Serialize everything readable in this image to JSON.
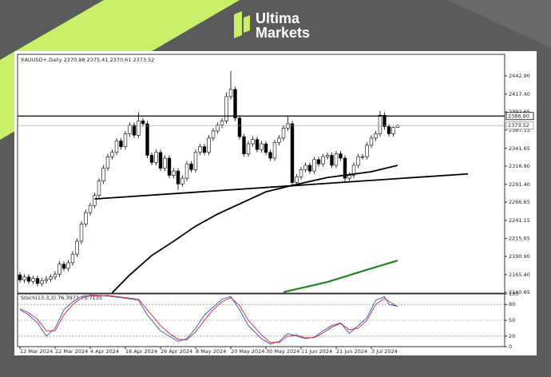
{
  "brand": {
    "line1": "Ultima",
    "line2": "Markets"
  },
  "chart_data": {
    "type": "candlestick",
    "symbol": "XAUUSD+,Daily",
    "categories": [
      "12 Mar 2024",
      null,
      null,
      null,
      null,
      null,
      null,
      null,
      "22 Mar 2024",
      null,
      null,
      null,
      null,
      null,
      null,
      null,
      "4 Apr 2024",
      null,
      null,
      null,
      null,
      null,
      null,
      null,
      "16 Apr 2024",
      null,
      null,
      null,
      null,
      null,
      null,
      null,
      "26 Apr 2024",
      null,
      null,
      null,
      null,
      null,
      null,
      null,
      "8 May 2024",
      null,
      null,
      null,
      null,
      null,
      null,
      null,
      "20 May 2024",
      null,
      null,
      null,
      null,
      null,
      null,
      null,
      "30 May 2024",
      null,
      null,
      null,
      null,
      null,
      null,
      null,
      "11 Jun 2024",
      null,
      null,
      null,
      null,
      null,
      null,
      null,
      "21 Jun 2024",
      null,
      null,
      null,
      null,
      null,
      null,
      null,
      "3 Jul 2024",
      null,
      null,
      null,
      null,
      null,
      null
    ],
    "open": [
      2165,
      2158,
      2162,
      2156,
      2160,
      2153,
      2157,
      2159,
      2162,
      2166,
      2180,
      2174,
      2182,
      2194,
      2212,
      2236,
      2252,
      2262,
      2276,
      2296,
      2314,
      2330,
      2336,
      2352,
      2344,
      2362,
      2374,
      2360,
      2380,
      2376,
      2332,
      2322,
      2336,
      2314,
      2328,
      2304,
      2310,
      2292,
      2300,
      2320,
      2312,
      2336,
      2344,
      2336,
      2356,
      2366,
      2374,
      2380,
      2414,
      2424,
      2384,
      2358,
      2334,
      2348,
      2354,
      2340,
      2348,
      2336,
      2328,
      2350,
      2356,
      2370,
      2376,
      2294,
      2302,
      2312,
      2318,
      2310,
      2326,
      2320,
      2330,
      2332,
      2318,
      2334,
      2328,
      2300,
      2304,
      2318,
      2330,
      2330,
      2346,
      2356,
      2362,
      2388,
      2372,
      2362,
      2370.98
    ],
    "high": [
      2169,
      2166,
      2166,
      2164,
      2164,
      2161,
      2163,
      2166,
      2170,
      2184,
      2184,
      2186,
      2198,
      2216,
      2240,
      2256,
      2266,
      2280,
      2300,
      2318,
      2334,
      2340,
      2356,
      2356,
      2366,
      2378,
      2378,
      2392,
      2384,
      2380,
      2336,
      2340,
      2340,
      2332,
      2332,
      2314,
      2314,
      2304,
      2324,
      2324,
      2340,
      2348,
      2348,
      2360,
      2370,
      2378,
      2384,
      2420,
      2450,
      2428,
      2388,
      2362,
      2352,
      2358,
      2358,
      2352,
      2352,
      2340,
      2354,
      2360,
      2374,
      2388,
      2380,
      2306,
      2316,
      2322,
      2322,
      2330,
      2330,
      2334,
      2336,
      2336,
      2338,
      2338,
      2332,
      2308,
      2322,
      2334,
      2334,
      2350,
      2360,
      2366,
      2394,
      2392,
      2376,
      2372,
      2375.41
    ],
    "low": [
      2154,
      2154,
      2152,
      2152,
      2149,
      2149,
      2153,
      2155,
      2158,
      2162,
      2170,
      2170,
      2178,
      2190,
      2208,
      2232,
      2248,
      2258,
      2272,
      2292,
      2310,
      2326,
      2332,
      2340,
      2340,
      2358,
      2356,
      2356,
      2372,
      2328,
      2318,
      2318,
      2310,
      2310,
      2300,
      2300,
      2284,
      2288,
      2296,
      2308,
      2308,
      2332,
      2332,
      2332,
      2352,
      2362,
      2370,
      2376,
      2410,
      2380,
      2354,
      2330,
      2330,
      2344,
      2336,
      2336,
      2332,
      2324,
      2324,
      2346,
      2352,
      2366,
      2288,
      2290,
      2298,
      2308,
      2306,
      2306,
      2316,
      2316,
      2326,
      2314,
      2314,
      2324,
      2294,
      2296,
      2300,
      2314,
      2326,
      2326,
      2342,
      2352,
      2358,
      2368,
      2358,
      2358,
      2370.61
    ],
    "close": [
      2158,
      2162,
      2156,
      2160,
      2153,
      2157,
      2159,
      2162,
      2166,
      2180,
      2174,
      2182,
      2194,
      2212,
      2236,
      2252,
      2262,
      2276,
      2296,
      2314,
      2330,
      2336,
      2352,
      2344,
      2362,
      2374,
      2360,
      2380,
      2376,
      2332,
      2322,
      2336,
      2314,
      2328,
      2304,
      2310,
      2292,
      2300,
      2320,
      2312,
      2336,
      2344,
      2336,
      2356,
      2366,
      2374,
      2380,
      2414,
      2424,
      2384,
      2358,
      2334,
      2348,
      2354,
      2340,
      2348,
      2336,
      2328,
      2350,
      2356,
      2370,
      2376,
      2294,
      2302,
      2312,
      2318,
      2310,
      2326,
      2320,
      2330,
      2332,
      2318,
      2334,
      2328,
      2300,
      2304,
      2318,
      2330,
      2330,
      2346,
      2356,
      2362,
      2388,
      2372,
      2362,
      2370.98,
      2373.52
    ],
    "up_color": "#ffffff",
    "down_color": "#000000",
    "outline_color": "#000000",
    "lines": [
      {
        "color": "#000000",
        "x": [
          21,
          25,
          30,
          35,
          40,
          45,
          50,
          56,
          62,
          70,
          80,
          86
        ],
        "values": [
          2140,
          2165,
          2192,
          2212,
          2233,
          2250,
          2264,
          2281,
          2290,
          2301,
          2309,
          2318
        ]
      },
      {
        "color": "#1a8a1a",
        "x": [
          60,
          70,
          80,
          86
        ],
        "values": [
          2141,
          2155,
          2174,
          2185
        ]
      },
      {
        "color": "#000000",
        "x": [
          17,
          102
        ],
        "values": [
          2271,
          2306
        ]
      }
    ],
    "hlines": [
      {
        "value": 2386.8,
        "label": "2386.80",
        "color": "#000000"
      },
      {
        "value": 2373.52,
        "label": "2373.52",
        "color": "#999999"
      }
    ],
    "ylim": [
      2139.5,
      2473
    ],
    "yticks": [
      {
        "value": 2140.65,
        "label": "2140.65"
      },
      {
        "value": 2165.4,
        "label": "2165.40"
      },
      {
        "value": 2190.9,
        "label": "2190.90"
      },
      {
        "value": 2215.65,
        "label": "2215.65"
      },
      {
        "value": 2241.15,
        "label": "2241.15"
      },
      {
        "value": 2266.65,
        "label": "2266.65"
      },
      {
        "value": 2291.4,
        "label": "2291.40"
      },
      {
        "value": 2316.9,
        "label": "2316.90"
      },
      {
        "value": 2341.65,
        "label": "2341.65"
      },
      {
        "value": 2367.15,
        "label": "2367.15"
      },
      {
        "value": 2392.65,
        "label": "2392.65"
      },
      {
        "value": 2417.4,
        "label": "2417.40"
      },
      {
        "value": 2442.9,
        "label": "2442.90"
      }
    ],
    "stoch": {
      "label": "Stoch(13,3,3)",
      "ylim": [
        0,
        100
      ],
      "yticks": [
        0,
        20,
        50,
        80,
        100
      ],
      "levels": [
        20,
        50,
        80
      ],
      "x": [
        0,
        2,
        4,
        6,
        8,
        10,
        12,
        14,
        16,
        20,
        24,
        27,
        29,
        32,
        34,
        36,
        38,
        40,
        42,
        44,
        46,
        48,
        50,
        52,
        55,
        57,
        59,
        61,
        63,
        65,
        67,
        69,
        71,
        73,
        75,
        77,
        79,
        81,
        83,
        84,
        86
      ],
      "series": [
        {
          "color": "#2255dd",
          "values": [
            70,
            60,
            45,
            20,
            35,
            70,
            85,
            95,
            98,
            96,
            92,
            88,
            60,
            30,
            20,
            10,
            15,
            35,
            60,
            75,
            90,
            95,
            70,
            40,
            15,
            5,
            10,
            25,
            20,
            15,
            18,
            30,
            40,
            45,
            25,
            40,
            55,
            88,
            95,
            80,
            76.3973
          ]
        },
        {
          "color": "#dd2222",
          "values": [
            72,
            64,
            52,
            30,
            30,
            60,
            80,
            92,
            96,
            97,
            93,
            90,
            70,
            40,
            25,
            14,
            13,
            28,
            50,
            70,
            85,
            93,
            78,
            50,
            22,
            8,
            8,
            20,
            22,
            17,
            17,
            26,
            37,
            44,
            32,
            35,
            50,
            80,
            92,
            86,
            75.7135
          ]
        }
      ]
    }
  }
}
